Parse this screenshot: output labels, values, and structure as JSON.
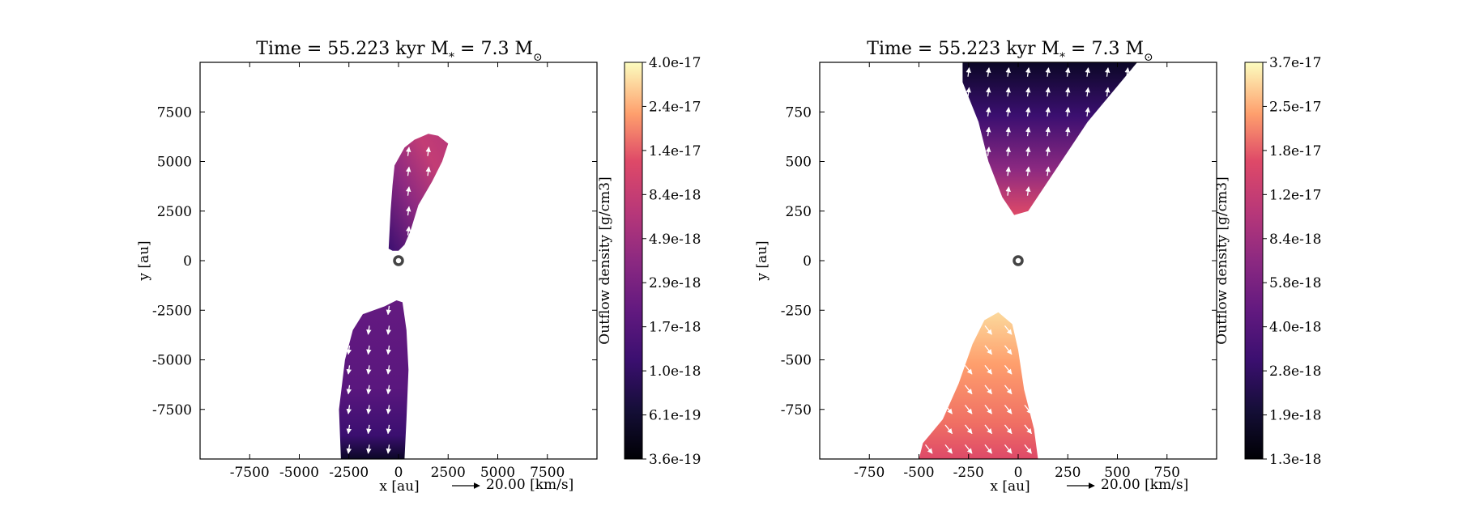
{
  "chart_data": [
    {
      "type": "heatmap",
      "title": "Time = 55.223 kyr    M$_*$ = 7.3 M$_\\odot$",
      "title_display": "Time = 55.223 kyr    M",
      "title_star_sub": "*",
      "title_mass": " = 7.3 M",
      "title_sun_sub": "⊙",
      "xlabel": "x [au]",
      "ylabel": "y [au]",
      "xlim": [
        -10000,
        10000
      ],
      "ylim": [
        -10000,
        10000
      ],
      "xticks": [
        -7500,
        -5000,
        -2500,
        0,
        2500,
        5000,
        7500
      ],
      "yticks": [
        7500,
        5000,
        2500,
        0,
        -2500,
        -5000,
        -7500
      ],
      "xtick_labels": [
        "-7500",
        "-5000",
        "-2500",
        "0",
        "2500",
        "5000",
        "7500"
      ],
      "ytick_labels": [
        "7500",
        "5000",
        "2500",
        "0",
        "-2500",
        "-5000",
        "-7500"
      ],
      "quiver_key": "20.00 [km/s]",
      "colorbar": {
        "label": "Outflow density [g/cm3]",
        "ticks": [
          "4.0e-17",
          "2.4e-17",
          "1.4e-17",
          "8.4e-18",
          "4.9e-18",
          "2.9e-18",
          "1.7e-18",
          "1.0e-18",
          "6.1e-19",
          "3.6e-19"
        ],
        "colormap": "magma"
      },
      "star": {
        "x": 0,
        "y": 0
      },
      "regions": [
        {
          "name": "upper-lobe",
          "polygon": [
            [
              -500,
              600
            ],
            [
              -400,
              2500
            ],
            [
              -300,
              3800
            ],
            [
              -200,
              4800
            ],
            [
              300,
              5700
            ],
            [
              800,
              6100
            ],
            [
              1500,
              6400
            ],
            [
              2000,
              6300
            ],
            [
              2500,
              5900
            ],
            [
              2200,
              5000
            ],
            [
              1700,
              4000
            ],
            [
              1000,
              2800
            ],
            [
              600,
              1500
            ],
            [
              300,
              800
            ],
            [
              0,
              500
            ],
            [
              -300,
              500
            ]
          ],
          "density": "5.0e-18"
        },
        {
          "name": "lower-lobe",
          "polygon": [
            [
              -2900,
              -10000
            ],
            [
              -3000,
              -7500
            ],
            [
              -2700,
              -5000
            ],
            [
              -2300,
              -3500
            ],
            [
              -1800,
              -2700
            ],
            [
              -700,
              -2300
            ],
            [
              -100,
              -2000
            ],
            [
              200,
              -2100
            ],
            [
              400,
              -3500
            ],
            [
              500,
              -5500
            ],
            [
              400,
              -8000
            ],
            [
              300,
              -10000
            ]
          ],
          "density": "1.7e-18"
        }
      ]
    },
    {
      "type": "heatmap",
      "title": "Time = 55.223 kyr    M$_*$ = 7.3 M$_\\odot$",
      "title_display": "Time = 55.223 kyr    M",
      "title_star_sub": "*",
      "title_mass": " = 7.3 M",
      "title_sun_sub": "⊙",
      "xlabel": "x [au]",
      "ylabel": "y [au]",
      "xlim": [
        -1000,
        1000
      ],
      "ylim": [
        -1000,
        1000
      ],
      "xticks": [
        -750,
        -500,
        -250,
        0,
        250,
        500,
        750
      ],
      "yticks": [
        750,
        500,
        250,
        0,
        -250,
        -500,
        -750
      ],
      "xtick_labels": [
        "-750",
        "-500",
        "-250",
        "0",
        "250",
        "500",
        "750"
      ],
      "ytick_labels": [
        "750",
        "500",
        "250",
        "0",
        "-250",
        "-500",
        "-750"
      ],
      "quiver_key": "20.00 [km/s]",
      "colorbar": {
        "label": "Outflow density [g/cm3]",
        "ticks": [
          "3.7e-17",
          "2.5e-17",
          "1.8e-17",
          "1.2e-17",
          "8.4e-18",
          "5.8e-18",
          "4.0e-18",
          "2.8e-18",
          "1.9e-18",
          "1.3e-18"
        ],
        "colormap": "magma"
      },
      "star": {
        "x": 0,
        "y": 0
      },
      "regions": [
        {
          "name": "upper-lobe",
          "polygon": [
            [
              -280,
              1000
            ],
            [
              -280,
              900
            ],
            [
              -200,
              700
            ],
            [
              -150,
              500
            ],
            [
              -80,
              320
            ],
            [
              -20,
              230
            ],
            [
              50,
              250
            ],
            [
              150,
              400
            ],
            [
              250,
              550
            ],
            [
              350,
              700
            ],
            [
              450,
              820
            ],
            [
              600,
              1000
            ]
          ],
          "density": "2.8e-18"
        },
        {
          "name": "lower-lobe",
          "polygon": [
            [
              -500,
              -1000
            ],
            [
              -480,
              -920
            ],
            [
              -380,
              -800
            ],
            [
              -300,
              -620
            ],
            [
              -230,
              -420
            ],
            [
              -170,
              -300
            ],
            [
              -100,
              -260
            ],
            [
              -30,
              -320
            ],
            [
              0,
              -450
            ],
            [
              30,
              -650
            ],
            [
              80,
              -850
            ],
            [
              100,
              -1000
            ]
          ],
          "density": "1.8e-17"
        }
      ]
    }
  ]
}
